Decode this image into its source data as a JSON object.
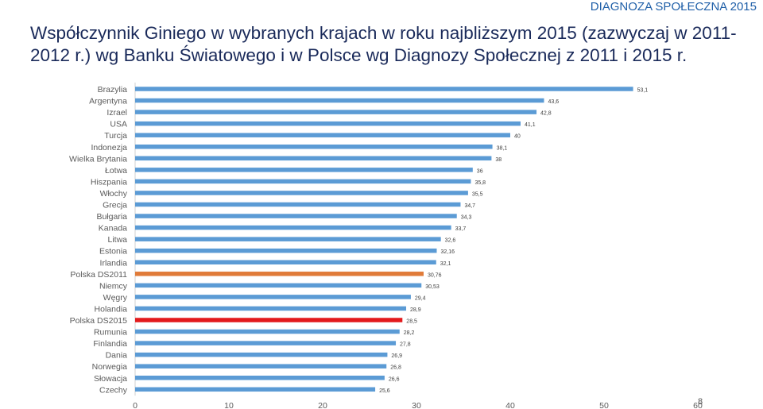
{
  "header": {
    "tag": "DIAGNOZA SPOŁECZNA 2015",
    "title": "Współczynnik Giniego w wybranych krajach w roku najbliższym 2015 (zazwyczaj w 2011-2012 r.) wg Banku Światowego  i w Polsce wg Diagnozy Społecznej z 2011 i 2015 r.",
    "page_number": "8"
  },
  "chart_data": {
    "type": "bar",
    "orientation": "horizontal",
    "categories": [
      "Brazylia",
      "Argentyna",
      "Izrael",
      "USA",
      "Turcja",
      "Indonezja",
      "Wielka Brytania",
      "Łotwa",
      "Hiszpania",
      "Włochy",
      "Grecja",
      "Bułgaria",
      "Kanada",
      "Litwa",
      "Estonia",
      "Irlandia",
      "Polska DS2011",
      "Niemcy",
      "Węgry",
      "Holandia",
      "Polska DS2015",
      "Rumunia",
      "Finlandia",
      "Dania",
      "Norwegia",
      "Słowacja",
      "Czechy"
    ],
    "values": [
      53.1,
      43.6,
      42.8,
      41.1,
      40,
      38.1,
      38,
      36,
      35.8,
      35.5,
      34.7,
      34.3,
      33.7,
      32.6,
      32.16,
      32.1,
      30.76,
      30.53,
      29.4,
      28.9,
      28.5,
      28.2,
      27.8,
      26.9,
      26.8,
      26.6,
      25.6
    ],
    "value_labels": [
      "53,1",
      "43,6",
      "42,8",
      "41,1",
      "40",
      "38,1",
      "38",
      "36",
      "35,8",
      "35,5",
      "34,7",
      "34,3",
      "33,7",
      "32,6",
      "32,16",
      "32,1",
      "30,76",
      "30,53",
      "29,4",
      "28,9",
      "28,5",
      "28,2",
      "27,8",
      "26,9",
      "26,8",
      "26,6",
      "25,6"
    ],
    "xlim": [
      0,
      60
    ],
    "x_ticks": [
      0,
      10,
      20,
      30,
      40,
      50,
      60
    ],
    "x_tick_labels": [
      "0",
      "10",
      "20",
      "30",
      "40",
      "50",
      "60"
    ],
    "grid": false,
    "legend": "none",
    "colors": {
      "default_bar": "#5b9bd5",
      "highlight_ds2011": "#e07b39",
      "highlight_ds2015": "#e31a1c",
      "category_text": "#5a5a5a",
      "value_text": "#404040"
    },
    "highlights": {
      "Polska DS2011": "highlight_ds2011",
      "Polska DS2015": "highlight_ds2015"
    }
  }
}
